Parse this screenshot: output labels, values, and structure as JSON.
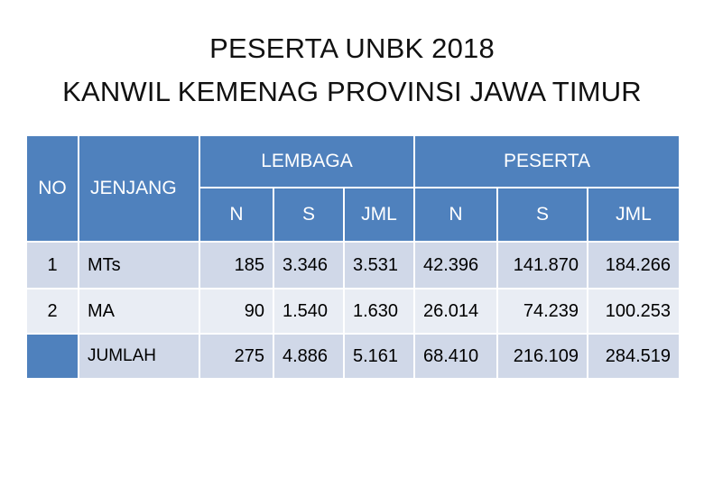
{
  "title": {
    "line1": "PESERTA UNBK 2018",
    "line2": "KANWIL KEMENAG PROVINSI JAWA TIMUR"
  },
  "table": {
    "header": {
      "no": "NO",
      "jenjang": "JENJANG",
      "lembaga": "LEMBAGA",
      "peserta": "PESERTA",
      "sub": [
        "N",
        "S",
        "JML",
        "N",
        "S",
        "JML"
      ]
    },
    "rows": [
      {
        "no": "1",
        "jenjang": "MTs",
        "values": [
          "185",
          "3.346",
          "3.531",
          "42.396",
          "141.870",
          "184.266"
        ]
      },
      {
        "no": "2",
        "jenjang": "MA",
        "values": [
          "90",
          "1.540",
          "1.630",
          "26.014",
          "74.239",
          "100.253"
        ]
      },
      {
        "no": "",
        "jenjang": "JUMLAH",
        "values": [
          "275",
          "4.886",
          "5.161",
          "68.410",
          "216.109",
          "284.519"
        ]
      }
    ]
  },
  "colors": {
    "header_blue": "#4f81bd",
    "row_dark": "#d0d8e8",
    "row_light": "#e9edf4"
  }
}
